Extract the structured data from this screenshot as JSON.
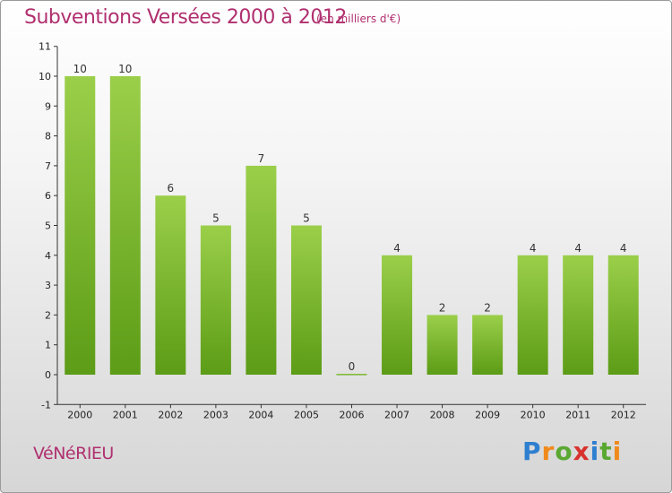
{
  "header": {
    "title": "Subventions Versées 2000 à 2012",
    "subtitle": "(en milliers d'€)"
  },
  "place_name": "VéNéRIEU",
  "brand": {
    "text": "Proxiti",
    "letters": [
      {
        "ch": "P",
        "color": "#2f7fd0"
      },
      {
        "ch": "r",
        "color": "#f08a1c"
      },
      {
        "ch": "o",
        "color": "#5aa832"
      },
      {
        "ch": "x",
        "color": "#d8322e"
      },
      {
        "ch": "i",
        "color": "#2f7fd0"
      },
      {
        "ch": "t",
        "color": "#5aa832"
      },
      {
        "ch": "i",
        "color": "#f08a1c"
      }
    ]
  },
  "colors": {
    "title": "#b0306f",
    "bar_top": "#9bcf4a",
    "bar_bottom": "#5c9c16",
    "axis": "#333333"
  },
  "chart_data": {
    "type": "bar",
    "title": "Subventions Versées 2000 à 2012",
    "subtitle": "(en milliers d'€)",
    "categories": [
      "2000",
      "2001",
      "2002",
      "2003",
      "2004",
      "2005",
      "2006",
      "2007",
      "2008",
      "2009",
      "2010",
      "2011",
      "2012"
    ],
    "values": [
      10,
      10,
      6,
      5,
      7,
      5,
      0,
      4,
      2,
      2,
      4,
      4,
      4
    ],
    "value_labels": [
      "10",
      "10",
      "6",
      "5",
      "7",
      "5",
      "0",
      "4",
      "2",
      "2",
      "4",
      "4",
      "4"
    ],
    "ylim": [
      -1,
      11
    ],
    "yticks": [
      -1,
      0,
      1,
      2,
      3,
      4,
      5,
      6,
      7,
      8,
      9,
      10,
      11
    ],
    "ytick_labels": [
      "-1",
      "0",
      "1",
      "2",
      "3",
      "4",
      "5",
      "6",
      "7",
      "8",
      "9",
      "10",
      "11"
    ],
    "grid": false,
    "legend": "none"
  }
}
